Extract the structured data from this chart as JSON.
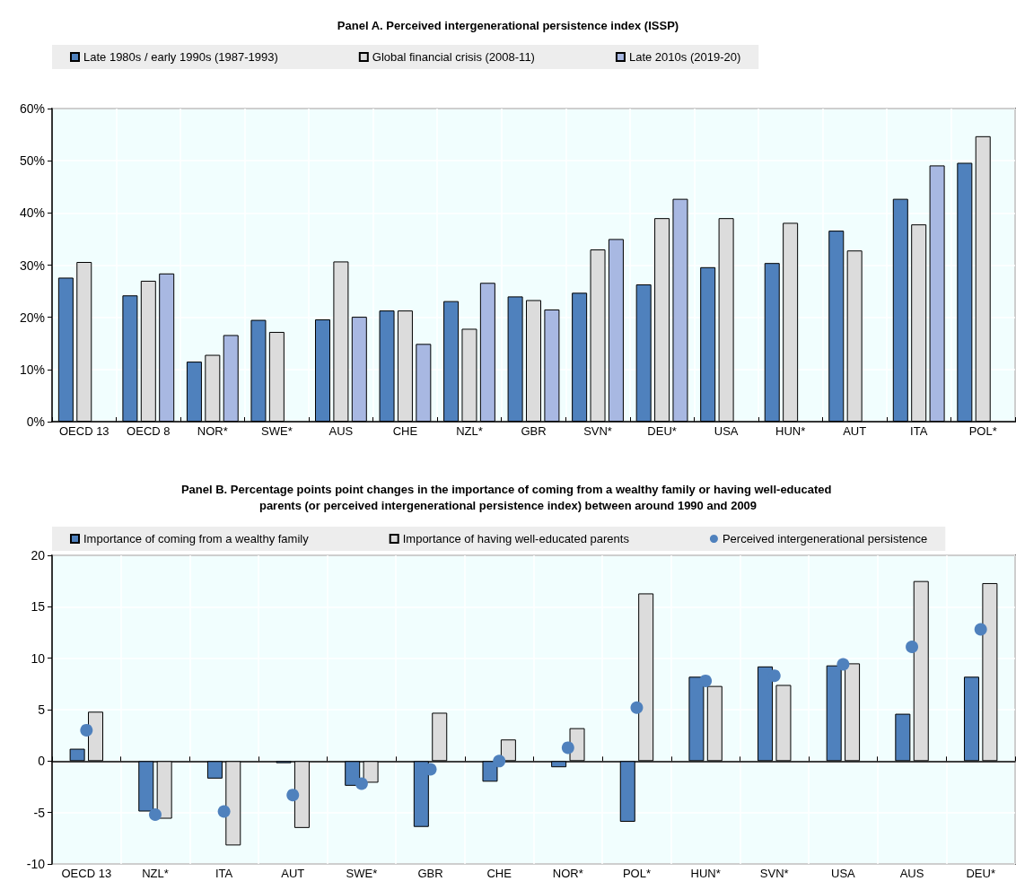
{
  "chart_data": [
    {
      "type": "bar",
      "title": "Panel A. Perceived intergenerational persistence index (ISSP)",
      "categories": [
        "OECD 13",
        "OECD 8",
        "NOR*",
        "SWE*",
        "AUS",
        "CHE",
        "NZL*",
        "GBR",
        "SVN*",
        "DEU*",
        "USA",
        "HUN*",
        "AUT",
        "ITA",
        "POL*"
      ],
      "series": [
        {
          "name": "Late 1980s / early 1990s (1987-1993)",
          "color": "#4f81bd",
          "values": [
            27.6,
            24.2,
            11.5,
            19.5,
            19.6,
            21.3,
            23.1,
            24.0,
            24.7,
            26.3,
            29.6,
            30.4,
            36.6,
            42.7,
            49.6
          ]
        },
        {
          "name": "Global financial crisis (2008-11)",
          "color": "#dcdcdc",
          "values": [
            30.6,
            27.0,
            12.8,
            17.2,
            30.7,
            21.3,
            17.8,
            23.3,
            33.0,
            39.0,
            39.0,
            38.1,
            32.8,
            37.8,
            54.7
          ]
        },
        {
          "name": "Late 2010s (2019-20)",
          "color": "#a8b8e2",
          "values": [
            null,
            28.4,
            16.6,
            null,
            20.1,
            14.9,
            26.6,
            21.5,
            35.0,
            42.7,
            null,
            null,
            null,
            49.1,
            null
          ]
        }
      ],
      "ylim": [
        0,
        60
      ],
      "yticks": [
        {
          "value": 0,
          "label": "0%"
        },
        {
          "value": 10,
          "label": "10%"
        },
        {
          "value": 20,
          "label": "20%"
        },
        {
          "value": 30,
          "label": "30%"
        },
        {
          "value": 40,
          "label": "40%"
        },
        {
          "value": 50,
          "label": "50%"
        },
        {
          "value": 60,
          "label": "60%"
        }
      ],
      "grid": true,
      "legend": "top"
    },
    {
      "type": "bar",
      "title": "Panel B. Percentage points point changes in the importance of coming from a wealthy family or having well-educated parents (or perceived intergenerational persistence index) between around 1990 and 2009",
      "categories": [
        "OECD 13",
        "NZL*",
        "ITA",
        "AUT",
        "SWE*",
        "GBR",
        "CHE",
        "NOR*",
        "POL*",
        "HUN*",
        "SVN*",
        "USA",
        "AUS",
        "DEU*"
      ],
      "series": [
        {
          "name": "Importance of coming from a wealthy family",
          "color": "#4f81bd",
          "values": [
            1.2,
            -4.9,
            -1.7,
            -0.2,
            -2.4,
            -6.4,
            -2.0,
            -0.6,
            -5.9,
            8.2,
            9.2,
            9.3,
            4.6,
            8.2
          ]
        },
        {
          "name": "Importance of having well-educated parents",
          "color": "#dcdcdc",
          "values": [
            4.8,
            -5.6,
            -8.2,
            -6.5,
            -2.1,
            4.7,
            2.1,
            3.2,
            16.3,
            7.3,
            7.4,
            9.5,
            17.5,
            17.3
          ]
        },
        {
          "name": "Perceived intergenerational persistence",
          "type": "scatter",
          "marker": "circle",
          "color": "#4f81bd",
          "x": [
            "OECD 13",
            "NZL*",
            "ITA",
            "AUT",
            "SWE*",
            "GBR",
            "CHE",
            "NOR*",
            "POL*",
            "HUN*",
            "SVN*",
            "USA",
            "AUS",
            "DEU*"
          ],
          "values": [
            3.0,
            -5.2,
            -4.9,
            -3.3,
            -2.2,
            -0.8,
            0.0,
            1.3,
            5.2,
            7.8,
            8.3,
            9.4,
            11.1,
            12.8
          ]
        }
      ],
      "ylim": [
        -10,
        20
      ],
      "yticks": [
        -10,
        -5,
        0,
        5,
        10,
        15,
        20
      ],
      "grid": true,
      "legend": "top"
    }
  ]
}
